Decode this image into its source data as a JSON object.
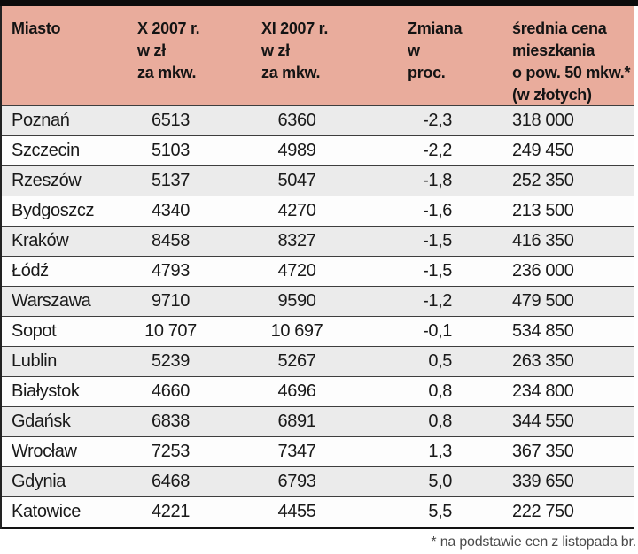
{
  "colors": {
    "header_bg": "#e9ac9c",
    "row_stripe": "#ebebeb",
    "row_plain": "#fdfdfd",
    "rule_dark": "#3e3e3e",
    "top_bar": "#0c0c0c",
    "footnote_text": "#4a4a4a"
  },
  "chart_data": {
    "type": "table",
    "columns": [
      {
        "id": "city",
        "lines": [
          "Miasto"
        ]
      },
      {
        "id": "oct",
        "lines": [
          "X 2007 r.",
          "w zł",
          "za mkw."
        ]
      },
      {
        "id": "nov",
        "lines": [
          "XI 2007 r.",
          "w zł",
          "za mkw."
        ]
      },
      {
        "id": "change",
        "lines": [
          "Zmiana",
          "w proc."
        ]
      },
      {
        "id": "avg",
        "lines": [
          "średnia cena",
          "mieszkania",
          "o pow. 50 mkw.*",
          "(w złotych)"
        ]
      }
    ],
    "rows": [
      {
        "city": "Poznań",
        "oct": "6513",
        "nov": "6360",
        "change": "-2,3",
        "avg": "318 000"
      },
      {
        "city": "Szczecin",
        "oct": "5103",
        "nov": "4989",
        "change": "-2,2",
        "avg": "249 450"
      },
      {
        "city": "Rzeszów",
        "oct": "5137",
        "nov": "5047",
        "change": "-1,8",
        "avg": "252 350"
      },
      {
        "city": "Bydgoszcz",
        "oct": "4340",
        "nov": "4270",
        "change": "-1,6",
        "avg": "213 500"
      },
      {
        "city": "Kraków",
        "oct": "8458",
        "nov": "8327",
        "change": "-1,5",
        "avg": "416 350"
      },
      {
        "city": "Łódź",
        "oct": "4793",
        "nov": "4720",
        "change": "-1,5",
        "avg": "236 000"
      },
      {
        "city": "Warszawa",
        "oct": "9710",
        "nov": "9590",
        "change": "-1,2",
        "avg": "479 500"
      },
      {
        "city": "Sopot",
        "oct": "10 707",
        "nov": "10 697",
        "change": "-0,1",
        "avg": "534 850"
      },
      {
        "city": "Lublin",
        "oct": "5239",
        "nov": "5267",
        "change": "0,5",
        "avg": "263 350"
      },
      {
        "city": "Białystok",
        "oct": "4660",
        "nov": "4696",
        "change": "0,8",
        "avg": "234 800"
      },
      {
        "city": "Gdańsk",
        "oct": "6838",
        "nov": "6891",
        "change": "0,8",
        "avg": "344 550"
      },
      {
        "city": "Wrocław",
        "oct": "7253",
        "nov": "7347",
        "change": "1,3",
        "avg": "367 350"
      },
      {
        "city": "Gdynia",
        "oct": "6468",
        "nov": "6793",
        "change": "5,0",
        "avg": "339 650"
      },
      {
        "city": "Katowice",
        "oct": "4221",
        "nov": "4455",
        "change": "5,5",
        "avg": "222 750"
      }
    ],
    "footnote": "* na podstawie cen z listopada br."
  }
}
